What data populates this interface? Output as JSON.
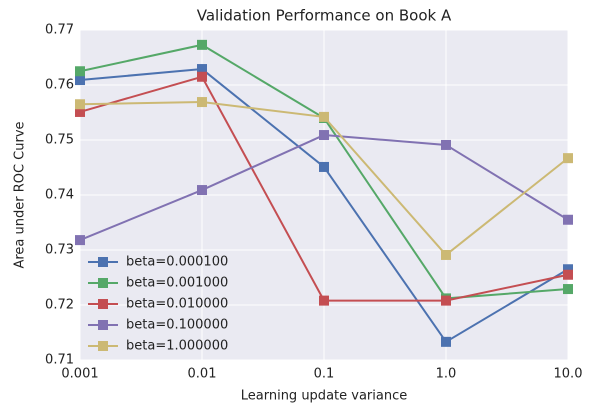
{
  "chart_data": {
    "type": "line",
    "title": "Validation Performance on Book A",
    "x_label": "Learning update variance",
    "y_label": "Area under ROC Curve",
    "x": [
      0.001,
      0.01,
      0.1,
      1,
      10
    ],
    "x_scale": "log",
    "xlim": [
      0.001,
      10
    ],
    "xticks": [
      0.001,
      0.01,
      0.1,
      {
        "value": 1,
        "label": "1.0"
      },
      {
        "value": 10,
        "label": "10.0"
      }
    ],
    "ylim": [
      0.71,
      0.77
    ],
    "yticks": [
      0.71,
      0.72,
      0.73,
      0.74,
      0.75,
      0.76,
      0.77
    ],
    "grid": true,
    "legend": "lower left",
    "series": [
      {
        "name": "beta=0.000100",
        "color": "#4c72b0",
        "values": [
          0.7609,
          0.7629,
          0.7451,
          0.7133,
          0.7265
        ]
      },
      {
        "name": "beta=0.001000",
        "color": "#55a868",
        "values": [
          0.7625,
          0.7673,
          0.754,
          0.7212,
          0.7229
        ]
      },
      {
        "name": "beta=0.010000",
        "color": "#c44e52",
        "values": [
          0.7551,
          0.7615,
          0.7208,
          0.7208,
          0.7255
        ]
      },
      {
        "name": "beta=0.100000",
        "color": "#8172b2",
        "values": [
          0.7318,
          0.7409,
          0.7509,
          0.7491,
          0.7355
        ]
      },
      {
        "name": "beta=1.000000",
        "color": "#ccb974",
        "values": [
          0.7565,
          0.7569,
          0.7542,
          0.7291,
          0.7467
        ]
      }
    ]
  }
}
